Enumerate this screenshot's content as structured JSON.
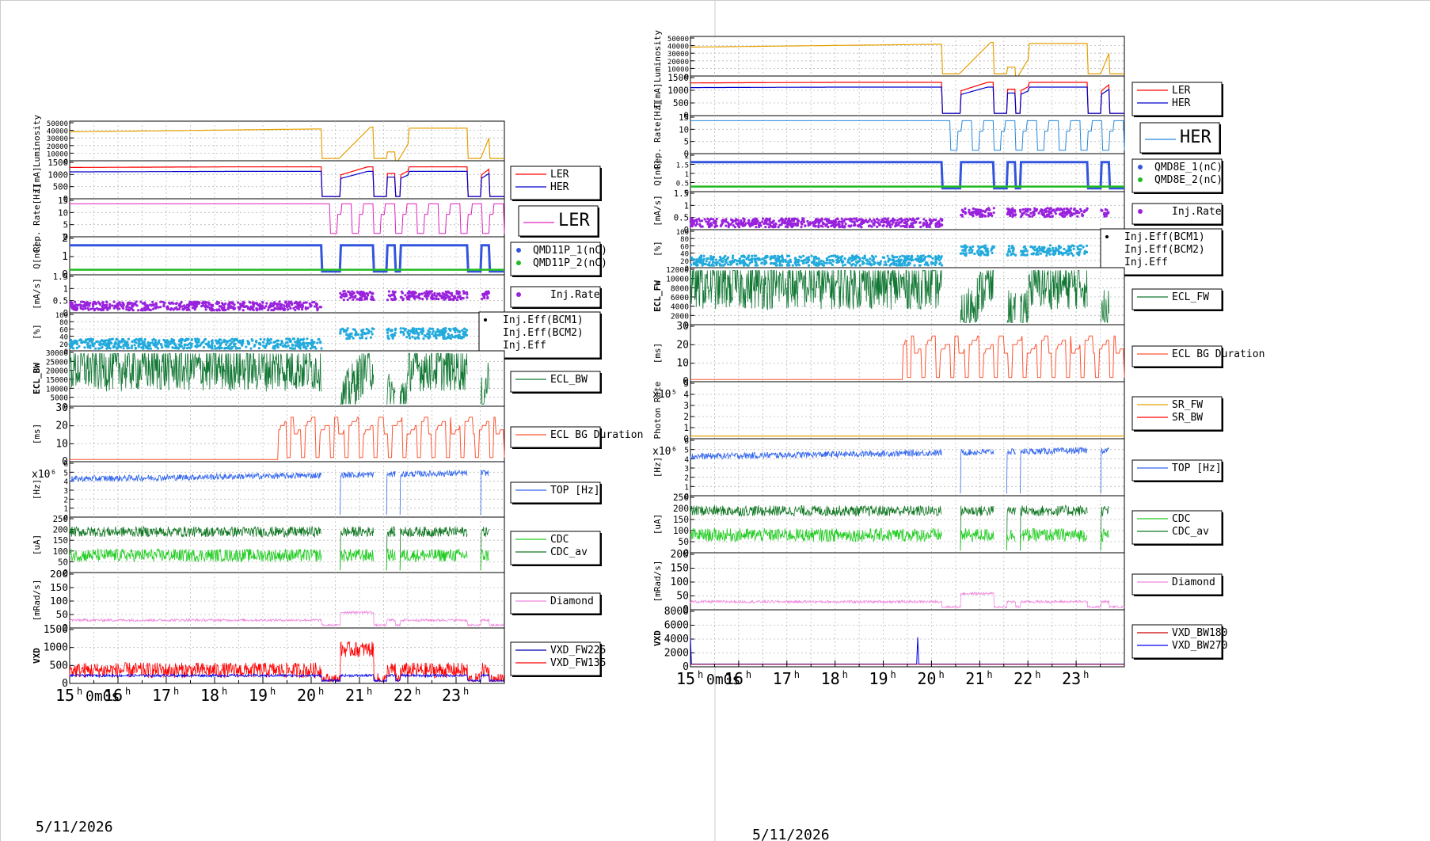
{
  "page": {
    "date_label": "5/11/2026",
    "time_ticks": [
      "15",
      "16",
      "17",
      "18",
      "19",
      "20",
      "21",
      "22",
      "23"
    ],
    "first_tick_extra": "0m0s"
  },
  "left_panels": [
    {
      "id": "lum",
      "ylabel": "Luminosity",
      "ticks": [
        "0",
        "10000",
        "20000",
        "30000",
        "40000",
        "50000"
      ],
      "legend": [],
      "color": "#e6a000"
    },
    {
      "id": "cur",
      "ylabel": "I[mA]",
      "ticks": [
        "0",
        "500",
        "1000",
        "1500"
      ],
      "legend": [
        {
          "name": "LER",
          "color": "#ff0000"
        },
        {
          "name": "HER",
          "color": "#0000cc"
        }
      ]
    },
    {
      "id": "rep",
      "ylabel": "Rep. Rate[Hz]",
      "ticks": [
        "0",
        "5",
        "10",
        "15"
      ],
      "legend": [
        {
          "name": "LER",
          "color": "#e020c0"
        }
      ],
      "big_legend": true
    },
    {
      "id": "q",
      "ylabel": "Q[nC]",
      "ticks": [
        "0",
        "1",
        "2"
      ],
      "legend": [
        {
          "name": "QMD11P_1(nC)",
          "color": "#3355dd"
        },
        {
          "name": "QMD11P_2(nC)",
          "color": "#22bb22"
        }
      ]
    },
    {
      "id": "inj",
      "ylabel": "[mA/s]",
      "ticks": [
        "0",
        "0.5",
        "1",
        "1.5"
      ],
      "legend": [
        {
          "name": "Inj.Rate",
          "color": "#9922dd"
        }
      ]
    },
    {
      "id": "eff",
      "ylabel": "[%]",
      "ticks": [
        "0",
        "20",
        "40",
        "60",
        "80",
        "100"
      ],
      "legend": [
        {
          "name": "Inj.Eff(BCM1)",
          "color": "#000000"
        },
        {
          "name": "Inj.Eff(BCM2)",
          "color": "#000000"
        },
        {
          "name": "Inj.Eff",
          "color": "#000000"
        }
      ]
    },
    {
      "id": "ecl",
      "ylabel": "ECL_BW",
      "ticks": [
        "0",
        "5000",
        "10000",
        "15000",
        "20000",
        "25000",
        "30000"
      ],
      "legend": [
        {
          "name": "ECL_BW",
          "color": "#117733"
        }
      ]
    },
    {
      "id": "bg",
      "ylabel": "[ms]",
      "ticks": [
        "0",
        "10",
        "20",
        "30"
      ],
      "legend": [
        {
          "name": "ECL BG Duration",
          "color": "#ff5533"
        }
      ]
    },
    {
      "id": "top",
      "ylabel": "[Hz]",
      "exp": "x10⁶",
      "ticks": [
        "0",
        "1",
        "2",
        "3",
        "4",
        "5",
        "6"
      ],
      "legend": [
        {
          "name": "TOP [Hz]",
          "color": "#3366ee"
        }
      ]
    },
    {
      "id": "cdc",
      "ylabel": "[uA]",
      "ticks": [
        "0",
        "50",
        "100",
        "150",
        "200",
        "250"
      ],
      "legend": [
        {
          "name": "CDC",
          "color": "#22cc22"
        },
        {
          "name": "CDC_av",
          "color": "#117722"
        }
      ]
    },
    {
      "id": "dia",
      "ylabel": "[mRad/s]",
      "ticks": [
        "0",
        "50",
        "100",
        "150",
        "200"
      ],
      "legend": [
        {
          "name": "Diamond",
          "color": "#ee88dd"
        }
      ]
    },
    {
      "id": "vxd",
      "ylabel": "VXD",
      "ticks": [
        "0",
        "500",
        "1000",
        "1500"
      ],
      "legend": [
        {
          "name": "VXD_FW225",
          "color": "#0000aa"
        },
        {
          "name": "VXD_FW135",
          "color": "#ff0000"
        }
      ]
    }
  ],
  "right_panels": [
    {
      "id": "lum",
      "ylabel": "Luminosity",
      "ticks": [
        "0",
        "10000",
        "20000",
        "30000",
        "40000",
        "50000"
      ],
      "legend": []
    },
    {
      "id": "cur",
      "ylabel": "I[mA]",
      "ticks": [
        "0",
        "500",
        "1000",
        "1500"
      ],
      "legend": [
        {
          "name": "LER",
          "color": "#ff0000"
        },
        {
          "name": "HER",
          "color": "#0000cc"
        }
      ]
    },
    {
      "id": "rep",
      "ylabel": "Rep. Rate[Hz]",
      "ticks": [
        "0",
        "5",
        "10",
        "15"
      ],
      "legend": [
        {
          "name": "HER",
          "color": "#2288dd"
        }
      ],
      "big_legend": true
    },
    {
      "id": "q",
      "ylabel": "Q[nC]",
      "ticks": [
        "0",
        "0.5",
        "1",
        "1.5",
        "2"
      ],
      "legend": [
        {
          "name": "QMD8E_1(nC)",
          "color": "#3355dd"
        },
        {
          "name": "QMD8E_2(nC)",
          "color": "#22bb22"
        }
      ]
    },
    {
      "id": "inj",
      "ylabel": "[mA/s]",
      "ticks": [
        "0",
        "0.5",
        "1",
        "1.5"
      ],
      "legend": [
        {
          "name": "Inj.Rate",
          "color": "#9922dd"
        }
      ]
    },
    {
      "id": "eff",
      "ylabel": "[%]",
      "ticks": [
        "0",
        "20",
        "40",
        "60",
        "80",
        "100"
      ],
      "legend": [
        {
          "name": "Inj.Eff(BCM1)",
          "color": "#000000"
        },
        {
          "name": "Inj.Eff(BCM2)",
          "color": "#000000"
        },
        {
          "name": "Inj.Eff",
          "color": "#000000"
        }
      ]
    },
    {
      "id": "ecl",
      "ylabel": "ECL_FW",
      "ticks": [
        "0",
        "2000",
        "4000",
        "6000",
        "8000",
        "10000",
        "12000"
      ],
      "legend": [
        {
          "name": "ECL_FW",
          "color": "#117733"
        }
      ]
    },
    {
      "id": "bg",
      "ylabel": "[ms]",
      "ticks": [
        "0",
        "10",
        "20",
        "30"
      ],
      "legend": [
        {
          "name": "ECL BG Duration",
          "color": "#ff5533"
        }
      ]
    },
    {
      "id": "sr",
      "ylabel": "Photon Rate",
      "exp": "x10⁵",
      "ticks": [
        "0",
        "1",
        "2",
        "3",
        "4",
        "5"
      ],
      "legend": [
        {
          "name": "SR_FW",
          "color": "#e6a000"
        },
        {
          "name": "SR_BW",
          "color": "#ff0000"
        }
      ]
    },
    {
      "id": "top",
      "ylabel": "[Hz]",
      "exp": "x10⁶",
      "ticks": [
        "0",
        "1",
        "2",
        "3",
        "4",
        "5",
        "6"
      ],
      "legend": [
        {
          "name": "TOP [Hz]",
          "color": "#3366ee"
        }
      ]
    },
    {
      "id": "cdc",
      "ylabel": "[uA]",
      "ticks": [
        "0",
        "50",
        "100",
        "150",
        "200",
        "250"
      ],
      "legend": [
        {
          "name": "CDC",
          "color": "#22cc22"
        },
        {
          "name": "CDC_av",
          "color": "#117722"
        }
      ]
    },
    {
      "id": "dia",
      "ylabel": "[mRad/s]",
      "ticks": [
        "0",
        "50",
        "100",
        "150",
        "200"
      ],
      "legend": [
        {
          "name": "Diamond",
          "color": "#ee88dd"
        }
      ]
    },
    {
      "id": "vxd",
      "ylabel": "VXD",
      "ticks": [
        "0",
        "2000",
        "4000",
        "6000",
        "8000"
      ],
      "legend": [
        {
          "name": "VXD_BW180",
          "color": "#cc0000"
        },
        {
          "name": "VXD_BW270",
          "color": "#0000ee"
        }
      ]
    }
  ],
  "chart_data": [
    {
      "type": "line",
      "panel": "left",
      "x_unit": "hour",
      "x_range": [
        15,
        24
      ],
      "series_profiles": "beam injection monitor strip chart, date 5/11/2026, time axis 15h to 24h"
    },
    {
      "type": "line",
      "panel": "right",
      "x_unit": "hour",
      "x_range": [
        15,
        24
      ],
      "series_profiles": "beam injection monitor strip chart, date 5/11/2026, time axis 15h to 24h"
    }
  ]
}
